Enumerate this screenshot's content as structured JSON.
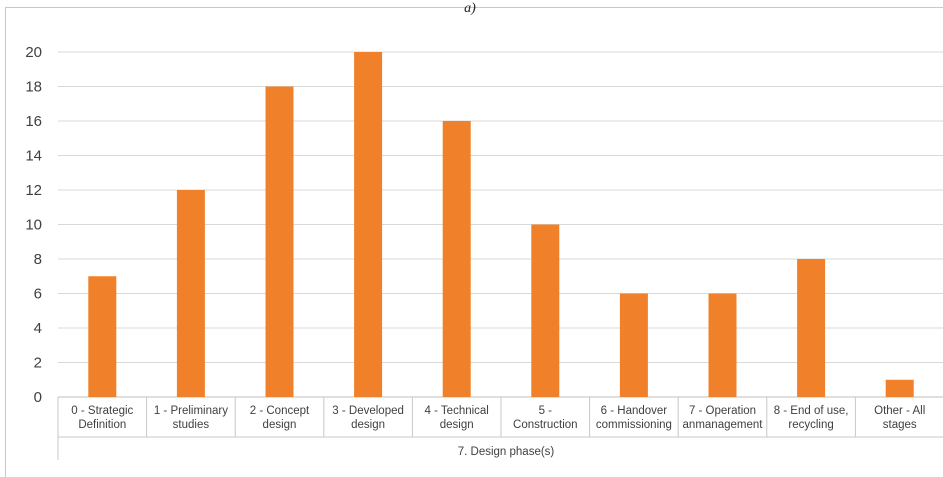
{
  "chart_data": {
    "type": "bar",
    "caption": "a)",
    "title": "",
    "categories": [
      [
        "0 - Strategic",
        "Definition"
      ],
      [
        "1 - Preliminary",
        "studies"
      ],
      [
        "2 - Concept",
        "design"
      ],
      [
        "3 - Developed",
        "design"
      ],
      [
        "4 - Technical",
        "design"
      ],
      [
        "5 -",
        "Construction"
      ],
      [
        "6 - Handover",
        "commissioning"
      ],
      [
        "7 - Operation",
        "anmanagement"
      ],
      [
        "8 - End of use,",
        "recycling"
      ],
      [
        "Other - All",
        "stages"
      ]
    ],
    "values": [
      7,
      12,
      18,
      20,
      16,
      10,
      6,
      6,
      8,
      1
    ],
    "xlabel": "7. Design phase(s)",
    "ylabel": "",
    "ylim": [
      0,
      20
    ],
    "yticks": [
      0,
      2,
      4,
      6,
      8,
      10,
      12,
      14,
      16,
      18,
      20
    ],
    "grid": true,
    "legend": "none",
    "colors": {
      "bar": "#F0812A",
      "grid": "#D9D9D9",
      "frame": "#C8C8C8",
      "text": "#404040"
    }
  }
}
